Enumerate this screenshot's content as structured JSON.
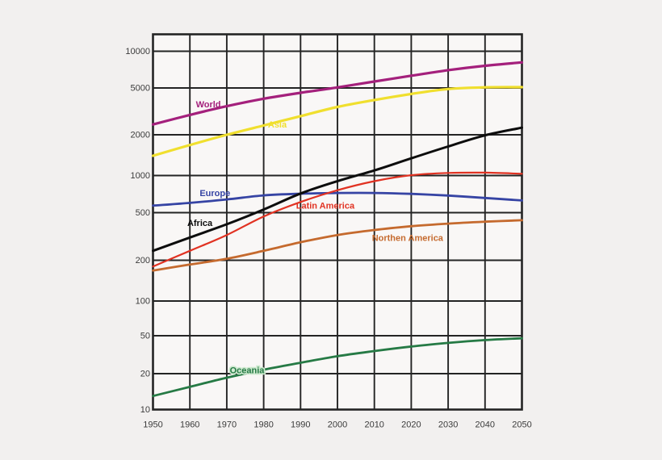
{
  "page": {
    "background": "#f2f0ef",
    "plot_background": "#f9f7f6",
    "grid_color": "#242424",
    "tick_label_color": "#3b3b3b"
  },
  "chart_data": {
    "type": "line",
    "title": "",
    "xlabel": "",
    "ylabel": "",
    "y_scale": "log",
    "grid": true,
    "legend_position": "inline-labels",
    "xlim": [
      1950,
      2050
    ],
    "ylim": [
      10,
      16000
    ],
    "x": [
      1950,
      1960,
      1970,
      1980,
      1990,
      2000,
      2010,
      2020,
      2030,
      2040,
      2050
    ],
    "x_tick_labels": [
      "1950",
      "1960",
      "1970",
      "1980",
      "1990",
      "2000",
      "2010",
      "2020",
      "2030",
      "2040",
      "2050"
    ],
    "y_ticks": [
      10000,
      5000,
      2000,
      1000,
      500,
      200,
      100,
      50,
      20,
      10
    ],
    "y_tick_labels": [
      "10000",
      "5000",
      "2000",
      "1000",
      "500",
      "200",
      "100",
      "50",
      "20",
      "10"
    ],
    "series": [
      {
        "name": "World",
        "color": "#a4207c",
        "values": [
          2450,
          2950,
          3500,
          4050,
          4550,
          5050,
          5650,
          6300,
          7000,
          7600,
          8100
        ],
        "label": {
          "text": "World",
          "year": 1965,
          "value": 3420
        }
      },
      {
        "name": "Asia",
        "color": "#f0df2e",
        "values": [
          1400,
          1680,
          2000,
          2400,
          2880,
          3450,
          3950,
          4450,
          4900,
          5060,
          5080
        ],
        "label": {
          "text": "Asia",
          "year": 1983.7,
          "value": 2300
        }
      },
      {
        "name": "Europe",
        "color": "#3644a4",
        "values": [
          570,
          600,
          640,
          690,
          712,
          722,
          722,
          710,
          688,
          658,
          628
        ],
        "label": {
          "text": "Europe",
          "year": 1966.8,
          "value": 680
        }
      },
      {
        "name": "Latin America",
        "color": "#e13222",
        "values": [
          180,
          240,
          325,
          465,
          610,
          760,
          900,
          1005,
          1045,
          1050,
          1030
        ],
        "label": {
          "text": "Latin America",
          "year": 1996.7,
          "value": 540
        }
      },
      {
        "name": "Northern America",
        "color": "#c56a2e",
        "values": [
          168,
          186,
          206,
          240,
          283,
          325,
          358,
          385,
          405,
          420,
          432
        ],
        "label": {
          "text": "Northen America",
          "year": 2019,
          "value": 291
        }
      },
      {
        "name": "Oceania",
        "color": "#267a45",
        "values": [
          13,
          15.5,
          18.5,
          22,
          26,
          30.5,
          34.5,
          38.5,
          42,
          45,
          47
        ],
        "label": {
          "text": "Oceania",
          "year": 1975.5,
          "value": 20.2,
          "halo": "#cde9ce"
        }
      },
      {
        "name": "Africa",
        "color": "#0d0d0d",
        "values": [
          240,
          310,
          400,
          530,
          715,
          900,
          1090,
          1340,
          1640,
          1980,
          2300
        ],
        "label": {
          "text": "Africa",
          "year": 1962.7,
          "value": 387
        }
      }
    ]
  }
}
